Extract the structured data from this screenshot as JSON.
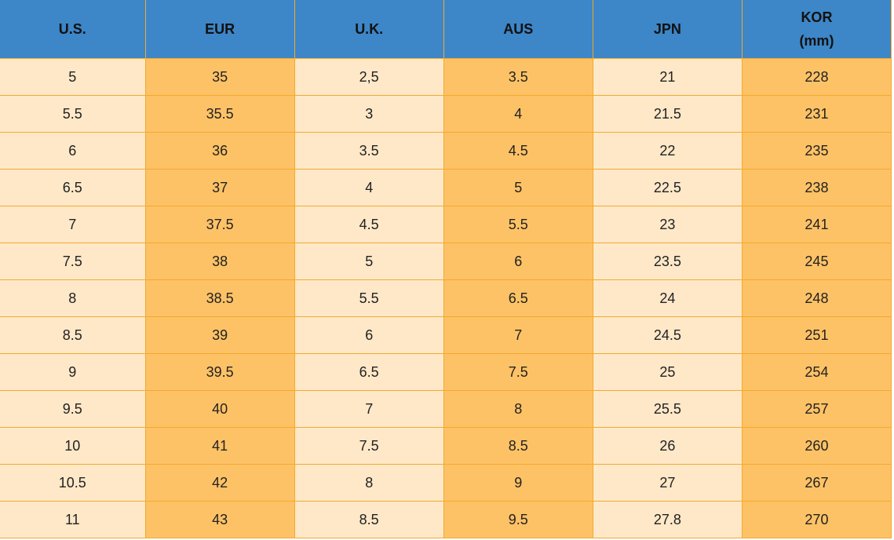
{
  "table": {
    "header": [
      "U.S.",
      "EUR",
      "U.K.",
      "AUS",
      "JPN",
      "KOR\n(mm)"
    ],
    "rows": [
      [
        "5",
        "35",
        "2,5",
        "3.5",
        "21",
        "228"
      ],
      [
        "5.5",
        "35.5",
        "3",
        "4",
        "21.5",
        "231"
      ],
      [
        "6",
        "36",
        "3.5",
        "4.5",
        "22",
        "235"
      ],
      [
        "6.5",
        "37",
        "4",
        "5",
        "22.5",
        "238"
      ],
      [
        "7",
        "37.5",
        "4.5",
        "5.5",
        "23",
        "241"
      ],
      [
        "7.5",
        "38",
        "5",
        "6",
        "23.5",
        "245"
      ],
      [
        "8",
        "38.5",
        "5.5",
        "6.5",
        "24",
        "248"
      ],
      [
        "8.5",
        "39",
        "6",
        "7",
        "24.5",
        "251"
      ],
      [
        "9",
        "39.5",
        "6.5",
        "7.5",
        "25",
        "254"
      ],
      [
        "9.5",
        "40",
        "7",
        "8",
        "25.5",
        "257"
      ],
      [
        "10",
        "41",
        "7.5",
        "8.5",
        "26",
        "260"
      ],
      [
        "10.5",
        "42",
        "8",
        "9",
        "27",
        "267"
      ],
      [
        "11",
        "43",
        "8.5",
        "9.5",
        "27.8",
        "270"
      ]
    ]
  }
}
